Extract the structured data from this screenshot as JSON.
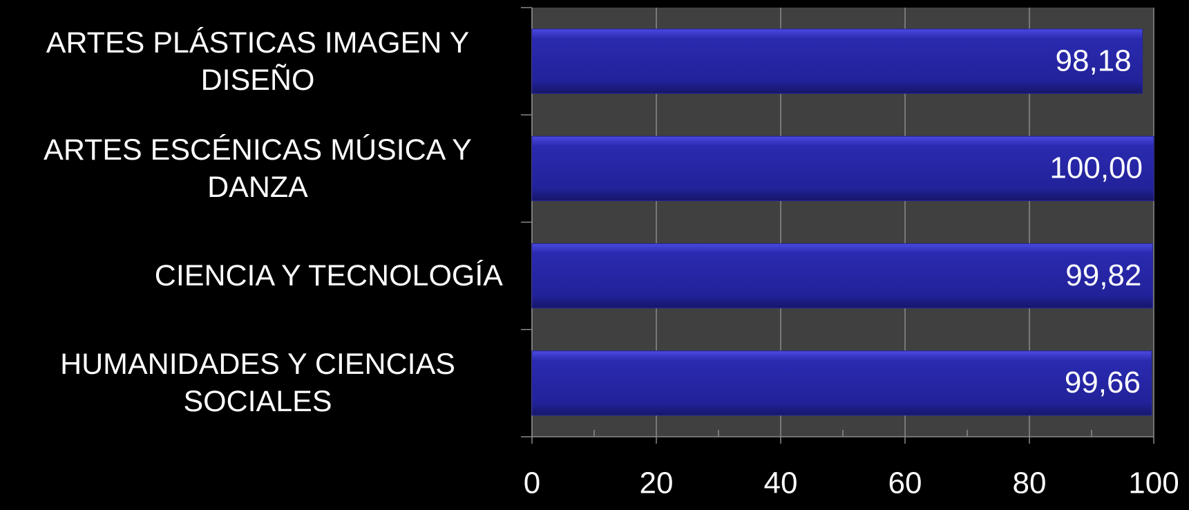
{
  "chart_data": {
    "type": "barh",
    "categories": [
      "ARTES PLÁSTICAS IMAGEN Y DISEÑO",
      "ARTES ESCÉNICAS MÚSICA Y DANZA",
      "CIENCIA Y TECNOLOGÍA",
      "HUMANIDADES Y CIENCIAS SOCIALES"
    ],
    "values": [
      98.18,
      100,
      99.82,
      99.66
    ],
    "value_labels": [
      "98,18",
      "100,00",
      "99,82",
      "99,66"
    ],
    "color": "#24249a",
    "xlim": [
      0,
      100
    ],
    "xticks": [
      0,
      20,
      40,
      60,
      80,
      100
    ],
    "grid": true
  }
}
